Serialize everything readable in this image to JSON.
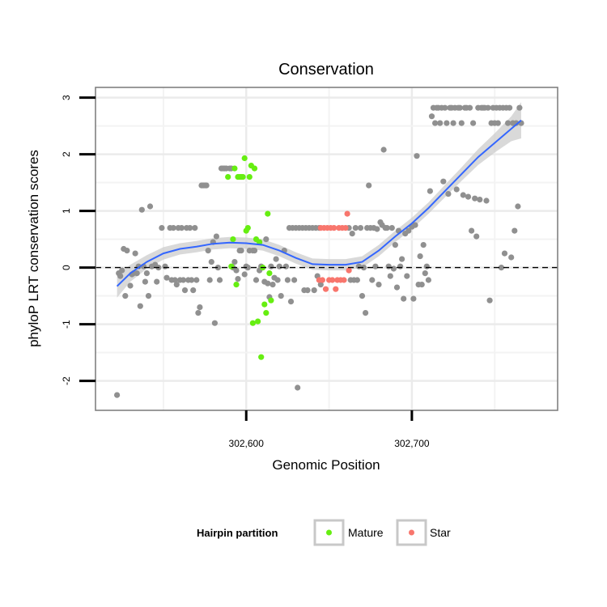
{
  "chart_data": {
    "type": "scatter",
    "title": "Conservation",
    "xlabel": "Genomic Position",
    "ylabel": "phyloP LRT conservation scores",
    "xlim": [
      302509,
      302788
    ],
    "ylim": [
      -2.52,
      3.18
    ],
    "x_ticks": [
      {
        "value": 302600,
        "label": "302,600"
      },
      {
        "value": 302700,
        "label": "302,700"
      }
    ],
    "x_minor_grid": [
      302550,
      302650,
      302750
    ],
    "y_ticks": [
      {
        "value": -2,
        "label": "-2"
      },
      {
        "value": -1,
        "label": "-1"
      },
      {
        "value": 0,
        "label": "0"
      },
      {
        "value": 1,
        "label": "1"
      },
      {
        "value": 2,
        "label": "2"
      },
      {
        "value": 3,
        "label": "3"
      }
    ],
    "grid": true,
    "reference_line": {
      "y": 0,
      "style": "dashed",
      "color": "#000000"
    },
    "legend": {
      "title": "Hairpin partition",
      "placement": "bottom",
      "items": [
        {
          "label": "Mature",
          "color": "#66ee11"
        },
        {
          "label": "Star",
          "color": "#f8766d"
        }
      ]
    },
    "colors": {
      "other": "#909090",
      "smooth": "#3366ff",
      "band": "#cccccc"
    },
    "series": [
      {
        "key": "other",
        "points": [
          [
            302522,
            -2.25
          ],
          [
            302523,
            -0.1
          ],
          [
            302524,
            -0.15
          ],
          [
            302525,
            -0.05
          ],
          [
            302526,
            0.33
          ],
          [
            302527,
            -0.5
          ],
          [
            302528,
            0.3
          ],
          [
            302530,
            -0.32
          ],
          [
            302531,
            -0.12
          ],
          [
            302532,
            -0.1
          ],
          [
            302533,
            0.25
          ],
          [
            302534,
            -0.1
          ],
          [
            302535,
            0.02
          ],
          [
            302536,
            -0.68
          ],
          [
            302537,
            1.02
          ],
          [
            302538,
            0.02
          ],
          [
            302539,
            -0.25
          ],
          [
            302540,
            -0.1
          ],
          [
            302541,
            -0.5
          ],
          [
            302542,
            1.08
          ],
          [
            302543,
            0.02
          ],
          [
            302545,
            0.05
          ],
          [
            302546,
            -0.25
          ],
          [
            302547,
            0.0
          ],
          [
            302549,
            0.7
          ],
          [
            302551,
            0.02
          ],
          [
            302552,
            -0.18
          ],
          [
            302554,
            0.7
          ],
          [
            302555,
            -0.22
          ],
          [
            302556,
            0.7
          ],
          [
            302557,
            -0.22
          ],
          [
            302558,
            -0.3
          ],
          [
            302559,
            0.7
          ],
          [
            302560,
            -0.22
          ],
          [
            302561,
            0.7
          ],
          [
            302562,
            -0.22
          ],
          [
            302563,
            -0.4
          ],
          [
            302564,
            0.7
          ],
          [
            302565,
            -0.22
          ],
          [
            302566,
            0.7
          ],
          [
            302567,
            -0.22
          ],
          [
            302568,
            -0.4
          ],
          [
            302569,
            0.7
          ],
          [
            302570,
            -0.22
          ],
          [
            302571,
            -0.8
          ],
          [
            302572,
            -0.7
          ],
          [
            302573,
            1.45
          ],
          [
            302574,
            1.45
          ],
          [
            302575,
            1.45
          ],
          [
            302576,
            1.45
          ],
          [
            302577,
            0.3
          ],
          [
            302578,
            -0.22
          ],
          [
            302579,
            0.1
          ],
          [
            302580,
            0.45
          ],
          [
            302581,
            -0.98
          ],
          [
            302582,
            0.55
          ],
          [
            302583,
            0.0
          ],
          [
            302584,
            -0.22
          ],
          [
            302585,
            1.75
          ],
          [
            302586,
            1.75
          ],
          [
            302587,
            1.75
          ],
          [
            302588,
            1.75
          ],
          [
            302590,
            1.75
          ],
          [
            302591,
            1.75
          ],
          [
            302592,
            0.0
          ],
          [
            302593,
            0.1
          ],
          [
            302594,
            -0.05
          ],
          [
            302595,
            -0.2
          ],
          [
            302596,
            0.3
          ],
          [
            302597,
            0.3
          ],
          [
            302599,
            -0.12
          ],
          [
            302600,
            0.02
          ],
          [
            302601,
            0.0
          ],
          [
            302602,
            0.3
          ],
          [
            302604,
            0.3
          ],
          [
            302605,
            0.3
          ],
          [
            302606,
            -0.22
          ],
          [
            302608,
            -0.05
          ],
          [
            302609,
            0.02
          ],
          [
            302611,
            -0.25
          ],
          [
            302612,
            0.5
          ],
          [
            302613,
            -0.28
          ],
          [
            302614,
            -0.52
          ],
          [
            302615,
            0.02
          ],
          [
            302616,
            -0.3
          ],
          [
            302617,
            -0.18
          ],
          [
            302618,
            0.15
          ],
          [
            302619,
            -0.22
          ],
          [
            302620,
            0.02
          ],
          [
            302621,
            -0.5
          ],
          [
            302623,
            0.3
          ],
          [
            302624,
            0.02
          ],
          [
            302625,
            -0.22
          ],
          [
            302626,
            0.7
          ],
          [
            302627,
            -0.6
          ],
          [
            302628,
            0.7
          ],
          [
            302629,
            -0.22
          ],
          [
            302630,
            0.7
          ],
          [
            302631,
            -2.12
          ],
          [
            302632,
            0.7
          ],
          [
            302634,
            0.7
          ],
          [
            302635,
            -0.4
          ],
          [
            302636,
            0.7
          ],
          [
            302637,
            -0.4
          ],
          [
            302638,
            0.7
          ],
          [
            302640,
            0.7
          ],
          [
            302641,
            -0.4
          ],
          [
            302642,
            0.7
          ],
          [
            302643,
            -0.15
          ],
          [
            302644,
            0.7
          ],
          [
            302645,
            -0.3
          ],
          [
            302662,
            0.7
          ],
          [
            302663,
            -0.22
          ],
          [
            302664,
            0.6
          ],
          [
            302665,
            -0.22
          ],
          [
            302666,
            0.7
          ],
          [
            302667,
            -0.22
          ],
          [
            302668,
            0.02
          ],
          [
            302669,
            0.7
          ],
          [
            302670,
            -0.5
          ],
          [
            302671,
            0.0
          ],
          [
            302672,
            -0.8
          ],
          [
            302673,
            0.7
          ],
          [
            302674,
            1.45
          ],
          [
            302675,
            0.7
          ],
          [
            302676,
            -0.22
          ],
          [
            302677,
            0.7
          ],
          [
            302678,
            0.02
          ],
          [
            302679,
            0.68
          ],
          [
            302680,
            -0.3
          ],
          [
            302681,
            0.8
          ],
          [
            302682,
            0.75
          ],
          [
            302683,
            2.08
          ],
          [
            302684,
            0.7
          ],
          [
            302685,
            0.7
          ],
          [
            302686,
            0.02
          ],
          [
            302687,
            -0.15
          ],
          [
            302688,
            0.7
          ],
          [
            302689,
            -0.02
          ],
          [
            302690,
            0.4
          ],
          [
            302691,
            -0.35
          ],
          [
            302692,
            0.65
          ],
          [
            302693,
            0.02
          ],
          [
            302694,
            0.15
          ],
          [
            302695,
            -0.55
          ],
          [
            302696,
            0.6
          ],
          [
            302697,
            -0.15
          ],
          [
            302698,
            0.65
          ],
          [
            302700,
            0.72
          ],
          [
            302701,
            -0.55
          ],
          [
            302702,
            0.75
          ],
          [
            302703,
            1.97
          ],
          [
            302704,
            -0.3
          ],
          [
            302705,
            0.2
          ],
          [
            302706,
            -0.3
          ],
          [
            302707,
            0.4
          ],
          [
            302708,
            -0.1
          ],
          [
            302709,
            0.02
          ],
          [
            302710,
            -0.22
          ],
          [
            302711,
            1.35
          ],
          [
            302712,
            2.67
          ],
          [
            302713,
            2.82
          ],
          [
            302714,
            2.55
          ],
          [
            302715,
            2.82
          ],
          [
            302716,
            2.82
          ],
          [
            302717,
            2.55
          ],
          [
            302718,
            2.82
          ],
          [
            302719,
            1.52
          ],
          [
            302720,
            2.82
          ],
          [
            302721,
            2.55
          ],
          [
            302722,
            1.3
          ],
          [
            302723,
            2.82
          ],
          [
            302724,
            2.82
          ],
          [
            302725,
            2.55
          ],
          [
            302726,
            2.82
          ],
          [
            302727,
            1.38
          ],
          [
            302728,
            2.82
          ],
          [
            302729,
            2.82
          ],
          [
            302730,
            2.55
          ],
          [
            302731,
            1.28
          ],
          [
            302732,
            2.82
          ],
          [
            302733,
            2.82
          ],
          [
            302734,
            1.25
          ],
          [
            302735,
            2.82
          ],
          [
            302736,
            0.65
          ],
          [
            302737,
            2.55
          ],
          [
            302738,
            1.22
          ],
          [
            302739,
            0.55
          ],
          [
            302740,
            2.82
          ],
          [
            302741,
            1.2
          ],
          [
            302742,
            2.82
          ],
          [
            302743,
            2.82
          ],
          [
            302744,
            2.82
          ],
          [
            302745,
            1.18
          ],
          [
            302746,
            2.82
          ],
          [
            302747,
            -0.58
          ],
          [
            302748,
            2.55
          ],
          [
            302749,
            2.82
          ],
          [
            302750,
            2.55
          ],
          [
            302751,
            2.82
          ],
          [
            302752,
            2.55
          ],
          [
            302753,
            2.82
          ],
          [
            302754,
            0.0
          ],
          [
            302755,
            2.82
          ],
          [
            302756,
            0.25
          ],
          [
            302757,
            2.82
          ],
          [
            302758,
            2.55
          ],
          [
            302759,
            2.82
          ],
          [
            302760,
            0.18
          ],
          [
            302761,
            2.55
          ],
          [
            302762,
            0.65
          ],
          [
            302763,
            2.55
          ],
          [
            302764,
            1.08
          ],
          [
            302765,
            2.82
          ],
          [
            302766,
            2.55
          ]
        ]
      },
      {
        "key": "mature",
        "name": "Mature",
        "points": [
          [
            302589,
            1.6
          ],
          [
            302591,
            0.02
          ],
          [
            302592,
            0.5
          ],
          [
            302593,
            1.75
          ],
          [
            302594,
            -0.3
          ],
          [
            302595,
            1.6
          ],
          [
            302596,
            1.6
          ],
          [
            302597,
            1.6
          ],
          [
            302598,
            1.6
          ],
          [
            302599,
            1.93
          ],
          [
            302600,
            0.65
          ],
          [
            302601,
            0.7
          ],
          [
            302602,
            1.6
          ],
          [
            302603,
            1.8
          ],
          [
            302604,
            -0.98
          ],
          [
            302605,
            1.75
          ],
          [
            302606,
            0.5
          ],
          [
            302607,
            -0.95
          ],
          [
            302608,
            0.45
          ],
          [
            302609,
            -1.58
          ],
          [
            302610,
            0.0
          ],
          [
            302611,
            -0.65
          ],
          [
            302612,
            -0.8
          ],
          [
            302613,
            0.95
          ],
          [
            302614,
            -0.1
          ],
          [
            302615,
            -0.58
          ]
        ]
      },
      {
        "key": "star",
        "name": "Star",
        "points": [
          [
            302644,
            -0.22
          ],
          [
            302645,
            0.7
          ],
          [
            302646,
            -0.22
          ],
          [
            302647,
            0.7
          ],
          [
            302648,
            -0.38
          ],
          [
            302649,
            0.7
          ],
          [
            302650,
            -0.22
          ],
          [
            302651,
            0.7
          ],
          [
            302652,
            -0.22
          ],
          [
            302653,
            0.7
          ],
          [
            302654,
            -0.38
          ],
          [
            302655,
            -0.22
          ],
          [
            302656,
            0.7
          ],
          [
            302657,
            -0.22
          ],
          [
            302658,
            0.7
          ],
          [
            302659,
            -0.22
          ],
          [
            302660,
            0.7
          ],
          [
            302661,
            0.95
          ],
          [
            302662,
            -0.05
          ]
        ]
      }
    ],
    "smooth_curve": [
      [
        302522,
        -0.33
      ],
      [
        302530,
        -0.1
      ],
      [
        302540,
        0.1
      ],
      [
        302550,
        0.25
      ],
      [
        302560,
        0.33
      ],
      [
        302570,
        0.37
      ],
      [
        302580,
        0.42
      ],
      [
        302590,
        0.44
      ],
      [
        302600,
        0.43
      ],
      [
        302610,
        0.4
      ],
      [
        302620,
        0.3
      ],
      [
        302630,
        0.17
      ],
      [
        302640,
        0.06
      ],
      [
        302650,
        0.05
      ],
      [
        302660,
        0.05
      ],
      [
        302670,
        0.1
      ],
      [
        302680,
        0.3
      ],
      [
        302690,
        0.55
      ],
      [
        302700,
        0.78
      ],
      [
        302710,
        1.05
      ],
      [
        302720,
        1.35
      ],
      [
        302730,
        1.65
      ],
      [
        302740,
        1.95
      ],
      [
        302750,
        2.2
      ],
      [
        302760,
        2.45
      ],
      [
        302766,
        2.6
      ]
    ],
    "smooth_se": [
      0.2,
      0.15,
      0.12,
      0.11,
      0.1,
      0.1,
      0.1,
      0.1,
      0.1,
      0.1,
      0.1,
      0.1,
      0.1,
      0.1,
      0.1,
      0.1,
      0.1,
      0.1,
      0.1,
      0.1,
      0.11,
      0.12,
      0.14,
      0.17,
      0.22,
      0.32
    ]
  }
}
